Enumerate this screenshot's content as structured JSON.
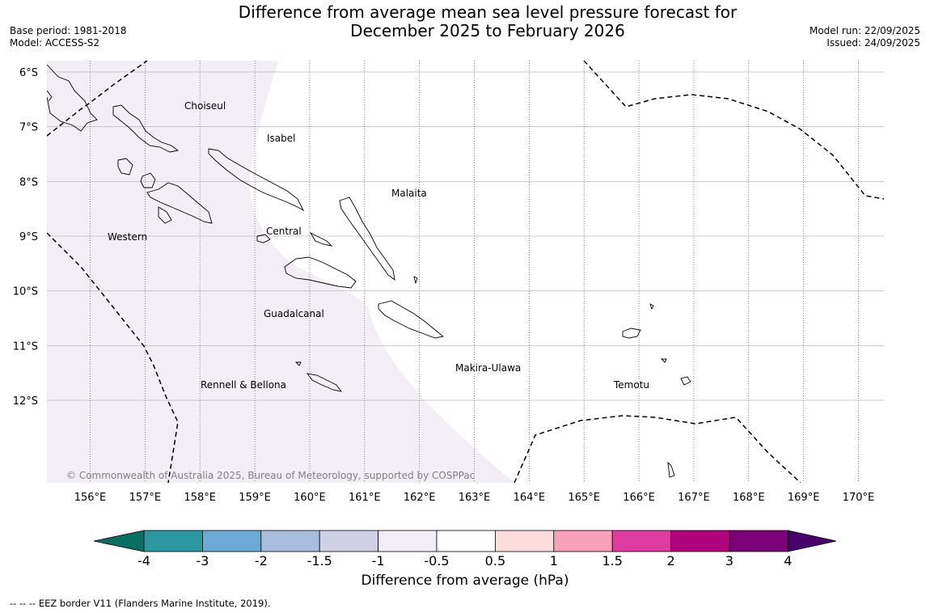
{
  "header": {
    "title_line1": "Difference from average mean sea level pressure forecast for",
    "title_line2": "December 2025 to February 2026",
    "base_period": "Base period: 1981-2018",
    "model": "Model: ACCESS-S2",
    "model_run": "Model run: 22/09/2025",
    "issued": "Issued: 24/09/2025"
  },
  "map": {
    "lat_labels": [
      "6°S",
      "7°S",
      "8°S",
      "9°S",
      "10°S",
      "11°S",
      "12°S"
    ],
    "lon_labels": [
      "156°E",
      "157°E",
      "158°E",
      "159°E",
      "160°E",
      "161°E",
      "162°E",
      "163°E",
      "164°E",
      "165°E",
      "166°E",
      "167°E",
      "168°E",
      "169°E",
      "170°E"
    ],
    "province_labels": [
      "Choiseul",
      "Isabel",
      "Malaita",
      "Western",
      "Central",
      "Guadalcanal",
      "Makira-Ulawa",
      "Rennell & Bellona",
      "Temotu"
    ],
    "copyright": "© Commonwealth of Australia 2025, Bureau of Meteorology, supported by COSPPac",
    "anomaly_fill_color": "#f3eef6",
    "coast_color": "#000000",
    "grid_color": "#bbbbbb"
  },
  "colorbar": {
    "ticks": [
      "-4",
      "-3",
      "-2",
      "-1.5",
      "-1",
      "-0.5",
      "0.5",
      "1",
      "1.5",
      "2",
      "3",
      "4"
    ],
    "colors": [
      "#0b6e65",
      "#2c97a1",
      "#6aaad4",
      "#a8bcdc",
      "#d0d1e6",
      "#f3eef6",
      "#ffffff",
      "#fddcde",
      "#f9a0bd",
      "#de3ca1",
      "#ae017e",
      "#7a0177",
      "#49006a"
    ],
    "label": "Difference from average (hPa)"
  },
  "legend": {
    "eez_note": "--  --  -- EEZ border V11 (Flanders Marine Institute, 2019)."
  }
}
